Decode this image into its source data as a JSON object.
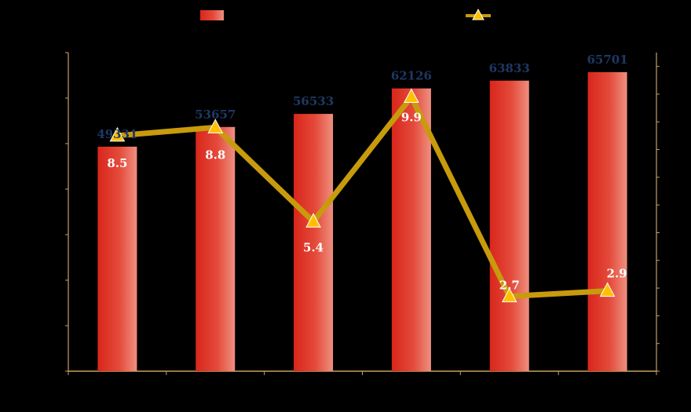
{
  "chart_data": {
    "type": "bar",
    "categories": [
      "",
      "",
      "",
      "",
      "",
      ""
    ],
    "series": [
      {
        "type": "bar",
        "axis": "left",
        "color": "#E0342A",
        "values": [
          49331,
          53657,
          56533,
          62126,
          63833,
          65701
        ],
        "data_labels": [
          "49331",
          "53657",
          "56533",
          "62126",
          "63833",
          "65701"
        ]
      },
      {
        "type": "line",
        "axis": "right",
        "color": "#C89B0C",
        "marker": "triangle",
        "marker_color": "#FFC000",
        "values": [
          8.5,
          8.8,
          5.4,
          9.9,
          2.7,
          2.9
        ],
        "data_labels": [
          "8.5",
          "8.8",
          "5.4",
          "9.9",
          "2.7",
          "2.9"
        ]
      }
    ],
    "title": "",
    "xlabel": "",
    "ylabel": "",
    "y2label": "",
    "ylim": [
      0,
      70000
    ],
    "y2lim": [
      0,
      11.5
    ],
    "grid": false,
    "legend": "top-center"
  }
}
